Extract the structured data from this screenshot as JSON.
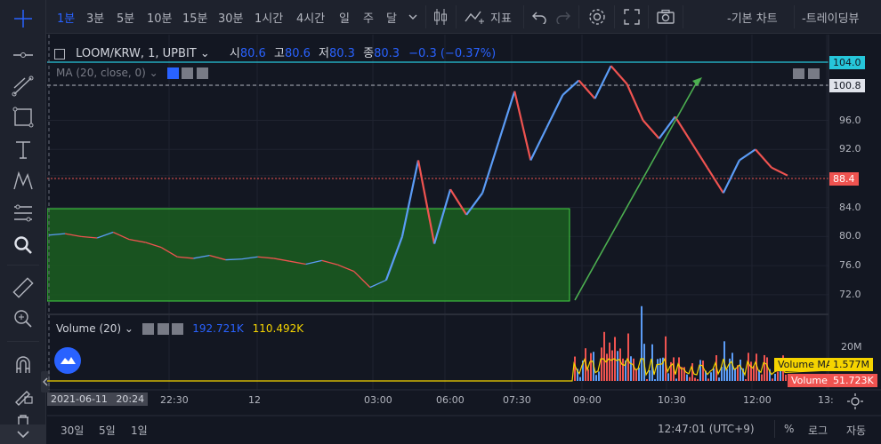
{
  "toolbar": {
    "intervals": [
      "1분",
      "3분",
      "5분",
      "10분",
      "15분",
      "30분",
      "1시간",
      "4시간",
      "일",
      "주",
      "달"
    ],
    "active_interval": "1분",
    "indicators_label": "지표",
    "basic_chart_label": "-기본 차트",
    "tradingview_label": "-트레이딩뷰"
  },
  "legend": {
    "symbol": "LOOM/KRW, 1, UPBIT",
    "open_label": "시",
    "open": "80.6",
    "high_label": "고",
    "high": "80.6",
    "low_label": "저",
    "low": "80.3",
    "close_label": "종",
    "close": "80.3",
    "change": "−0.3 (−0.37%)",
    "ma_label": "MA (20, close, 0)"
  },
  "price_axis": {
    "ticks": [
      "104.0",
      "100.8",
      "96.0",
      "92.0",
      "88.4",
      "84.0",
      "80.0",
      "76.0",
      "72.0"
    ],
    "hline_top": "104.0",
    "dash_line": "100.8",
    "current_price": "88.4"
  },
  "volume_pane": {
    "label": "Volume (20)",
    "value1": "192.721K",
    "value2": "110.492K",
    "axis_tick": "20M",
    "ma_label": "Volume MA",
    "ma_value": "1.577M",
    "vol_label": "Volume",
    "vol_value": "51.723K"
  },
  "time_axis": {
    "start_date": "2021-06-11",
    "start_time": "20:24",
    "ticks": [
      "22:30",
      "12",
      "03:00",
      "06:00",
      "07:30",
      "09:00",
      "10:30",
      "12:00",
      "13:"
    ]
  },
  "bottom": {
    "ranges": [
      "30일",
      "5일",
      "1일"
    ],
    "clock": "12:47:01 (UTC+9)",
    "percent": "%",
    "log": "로그",
    "auto": "자동"
  },
  "colors": {
    "accent": "#2962ff",
    "up": "#5b9cf6",
    "down": "#ef5350",
    "box": "#1b5e20",
    "trend": "#4caf50",
    "ma_line": "#f5d400"
  },
  "chart_data": {
    "type": "line",
    "series": [
      {
        "values": [
          80.2,
          80.4,
          80.0,
          79.8,
          80.6,
          79.6,
          79.2,
          78.5,
          77.2,
          77.0,
          77.4,
          76.8,
          76.9,
          77.2,
          77.0,
          76.6,
          76.2,
          76.7,
          76.1,
          75.2,
          73.0,
          74.0,
          80.0,
          90.5,
          79.0,
          86.5,
          83.0,
          86.0,
          93.0,
          100.0,
          90.5,
          95.0,
          99.5,
          101.5,
          99.0,
          103.5,
          101.0,
          96.0,
          93.5,
          96.5,
          93.0,
          89.5,
          86.0,
          90.5,
          92.0,
          89.5,
          88.4
        ]
      }
    ],
    "ylim": [
      71,
      104.5
    ]
  }
}
